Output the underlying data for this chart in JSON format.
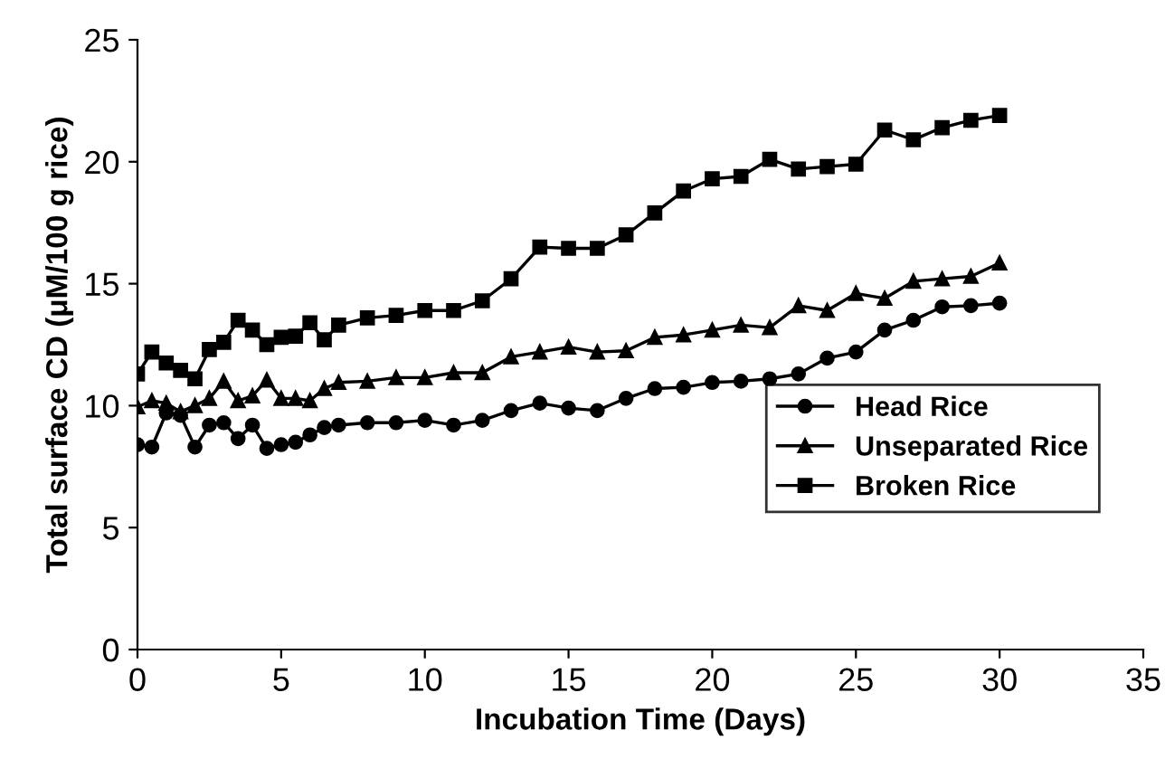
{
  "chart_data": {
    "type": "line",
    "xlabel": "Incubation Time (Days)",
    "ylabel": "Total surface CD (μM/100 g rice)",
    "x": [
      0,
      0.5,
      1,
      1.5,
      2,
      2.5,
      3,
      3.5,
      4,
      4.5,
      5,
      5.5,
      6,
      6.5,
      7,
      8,
      9,
      10,
      11,
      12,
      13,
      14,
      15,
      16,
      17,
      18,
      19,
      20,
      21,
      22,
      23,
      24,
      25,
      26,
      27,
      28,
      29,
      30
    ],
    "series": [
      {
        "name": "Head Rice",
        "color": "#000000",
        "marker": "circle",
        "values": [
          8.4,
          8.3,
          9.7,
          9.6,
          8.3,
          9.2,
          9.3,
          8.65,
          9.2,
          8.25,
          8.4,
          8.5,
          8.8,
          9.1,
          9.2,
          9.3,
          9.3,
          9.4,
          9.2,
          9.4,
          9.8,
          10.1,
          9.9,
          9.8,
          10.3,
          10.7,
          10.75,
          10.95,
          11.0,
          11.1,
          11.3,
          11.95,
          12.2,
          13.1,
          13.5,
          14.05,
          14.1,
          14.2
        ]
      },
      {
        "name": "Unseparated Rice",
        "color": "#000000",
        "marker": "triangle",
        "values": [
          9.95,
          10.2,
          10.1,
          9.75,
          10.0,
          10.3,
          11.0,
          10.2,
          10.4,
          11.05,
          10.3,
          10.3,
          10.2,
          10.7,
          10.95,
          11.0,
          11.15,
          11.15,
          11.35,
          11.35,
          12.0,
          12.2,
          12.4,
          12.2,
          12.25,
          12.8,
          12.9,
          13.1,
          13.3,
          13.2,
          14.1,
          13.9,
          14.6,
          14.4,
          15.1,
          15.2,
          15.3,
          15.85
        ]
      },
      {
        "name": "Broken Rice",
        "color": "#000000",
        "marker": "square",
        "values": [
          11.3,
          12.2,
          11.75,
          11.45,
          11.1,
          12.3,
          12.6,
          13.5,
          13.1,
          12.5,
          12.8,
          12.85,
          13.4,
          12.7,
          13.3,
          13.6,
          13.7,
          13.9,
          13.9,
          14.3,
          15.2,
          16.5,
          16.45,
          16.45,
          17.0,
          17.9,
          18.8,
          19.3,
          19.4,
          20.1,
          19.7,
          19.8,
          19.9,
          21.3,
          20.9,
          21.4,
          21.7,
          21.9
        ]
      }
    ],
    "xlim": [
      0,
      35
    ],
    "xticks": [
      0,
      5,
      10,
      15,
      20,
      25,
      30,
      35
    ],
    "ylim": [
      0,
      25
    ],
    "yticks": [
      0,
      5,
      10,
      15,
      20,
      25
    ],
    "grid": false,
    "legend": "center right",
    "line_style": "solid"
  }
}
